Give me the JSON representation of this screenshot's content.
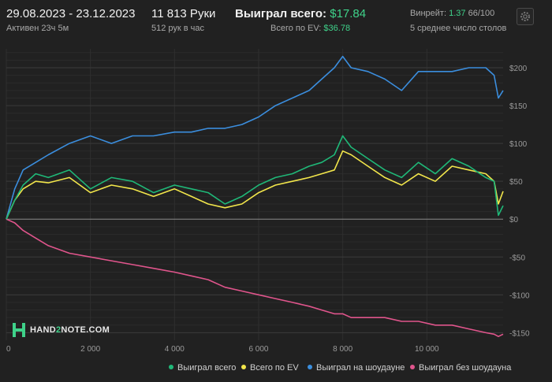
{
  "header": {
    "date_range": "29.08.2023 - 23.12.2023",
    "active": "Активен 23ч 5м",
    "hands": "11 813 Руки",
    "hands_per_hour": "512 рук в час",
    "won_label": "Выиграл всего:",
    "won_value": "$17.84",
    "ev_label": "Всего по EV:",
    "ev_value": "$36.78",
    "winrate_label": "Винрейт:",
    "winrate_value": "1.37",
    "winrate_rest": "66/100",
    "tables": "5 среднее число столов"
  },
  "logo": {
    "pre": "HAND",
    "mid": "2",
    "post": "NOTE.COM"
  },
  "colors": {
    "won": "#1fb878",
    "ev": "#f2e64b",
    "showdown": "#3b8ede",
    "nonshowdown": "#e0558c",
    "accent": "#3fd28a"
  },
  "chart_data": {
    "type": "line",
    "xlim": [
      0,
      11813
    ],
    "ylim": [
      -160,
      225
    ],
    "x_ticks": [
      0,
      2000,
      4000,
      6000,
      8000,
      10000
    ],
    "x_tick_labels": [
      "0",
      "2 000",
      "4 000",
      "6 000",
      "8 000",
      "10 000"
    ],
    "y_ticks": [
      200,
      150,
      100,
      50,
      0,
      -50,
      -100,
      -150
    ],
    "y_tick_labels": [
      "$200",
      "$150",
      "$100",
      "$50",
      "$0",
      "-$50",
      "-$100",
      "-$150"
    ],
    "grid": true,
    "legend_position": "bottom",
    "x": [
      0,
      200,
      400,
      700,
      1000,
      1500,
      2000,
      2500,
      3000,
      3500,
      4000,
      4400,
      4800,
      5200,
      5600,
      6000,
      6400,
      6800,
      7200,
      7500,
      7800,
      8000,
      8200,
      8600,
      9000,
      9400,
      9800,
      10200,
      10600,
      11000,
      11400,
      11600,
      11700,
      11813
    ],
    "series": [
      {
        "name": "Выиграл всего",
        "color_key": "won",
        "values": [
          0,
          25,
          45,
          60,
          55,
          65,
          40,
          55,
          50,
          35,
          45,
          40,
          35,
          20,
          30,
          45,
          55,
          60,
          70,
          75,
          85,
          110,
          95,
          80,
          65,
          55,
          75,
          60,
          80,
          70,
          55,
          50,
          5,
          17.84
        ]
      },
      {
        "name": "Всего по EV",
        "color_key": "ev",
        "values": [
          0,
          25,
          40,
          50,
          48,
          55,
          35,
          45,
          40,
          30,
          40,
          30,
          20,
          15,
          20,
          35,
          45,
          50,
          55,
          60,
          65,
          90,
          85,
          70,
          55,
          45,
          60,
          50,
          70,
          65,
          60,
          50,
          20,
          36.78
        ]
      },
      {
        "name": "Выиграл на шоудауне",
        "color_key": "showdown",
        "values": [
          0,
          40,
          65,
          75,
          85,
          100,
          110,
          100,
          110,
          110,
          115,
          115,
          120,
          120,
          125,
          135,
          150,
          160,
          170,
          185,
          200,
          215,
          200,
          195,
          185,
          170,
          195,
          195,
          195,
          200,
          200,
          190,
          160,
          170
        ]
      },
      {
        "name": "Выиграл без шоудауна",
        "color_key": "nonshowdown",
        "values": [
          0,
          -5,
          -15,
          -25,
          -35,
          -45,
          -50,
          -55,
          -60,
          -65,
          -70,
          -75,
          -80,
          -90,
          -95,
          -100,
          -105,
          -110,
          -115,
          -120,
          -125,
          -125,
          -130,
          -130,
          -130,
          -135,
          -135,
          -140,
          -140,
          -145,
          -150,
          -152,
          -155,
          -152
        ]
      }
    ]
  }
}
